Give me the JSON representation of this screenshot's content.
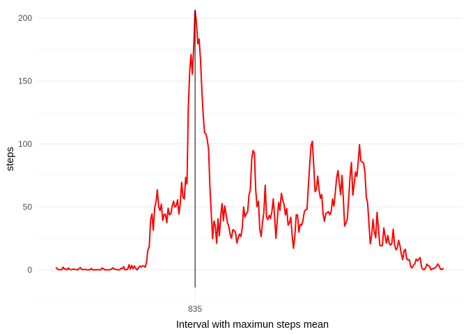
{
  "chart_data": {
    "type": "line",
    "title": "",
    "xlabel": "Interval with maximun steps mean",
    "ylabel": "steps",
    "x_ticks": [
      "835"
    ],
    "y_ticks": [
      0,
      50,
      100,
      150,
      200
    ],
    "ylim": [
      -25,
      210
    ],
    "grid": true,
    "colors": {
      "series": "#ff0000",
      "marker_line": "#000000"
    },
    "max_marker": {
      "x": 835,
      "y_from": -14,
      "y_to": 206
    },
    "series": [
      {
        "values": [
          [
            0,
            1.7
          ],
          [
            5,
            0.3
          ],
          [
            10,
            0.1
          ],
          [
            15,
            0.2
          ],
          [
            20,
            0.1
          ],
          [
            25,
            2.1
          ],
          [
            30,
            0.5
          ],
          [
            35,
            0.9
          ],
          [
            40,
            0.0
          ],
          [
            45,
            1.5
          ],
          [
            50,
            0.3
          ],
          [
            55,
            0.1
          ],
          [
            100,
            0.3
          ],
          [
            105,
            0.7
          ],
          [
            110,
            0.2
          ],
          [
            115,
            0.3
          ],
          [
            120,
            0.0
          ],
          [
            125,
            1.1
          ],
          [
            130,
            1.8
          ],
          [
            135,
            0.2
          ],
          [
            140,
            0.2
          ],
          [
            145,
            0.4
          ],
          [
            150,
            0.3
          ],
          [
            155,
            0.0
          ],
          [
            200,
            0.0
          ],
          [
            205,
            0.0
          ],
          [
            210,
            1.1
          ],
          [
            215,
            0.0
          ],
          [
            220,
            0.0
          ],
          [
            225,
            0.1
          ],
          [
            230,
            0.0
          ],
          [
            235,
            0.2
          ],
          [
            240,
            0.0
          ],
          [
            245,
            0.0
          ],
          [
            250,
            1.5
          ],
          [
            255,
            0.9
          ],
          [
            300,
            0.0
          ],
          [
            305,
            0.0
          ],
          [
            310,
            0.0
          ],
          [
            315,
            0.0
          ],
          [
            320,
            0.2
          ],
          [
            325,
            0.6
          ],
          [
            330,
            1.6
          ],
          [
            335,
            0.6
          ],
          [
            340,
            0.5
          ],
          [
            345,
            0.1
          ],
          [
            350,
            0.0
          ],
          [
            355,
            0.0
          ],
          [
            400,
            1.2
          ],
          [
            405,
            0.9
          ],
          [
            410,
            2.6
          ],
          [
            415,
            0.0
          ],
          [
            420,
            0.3
          ],
          [
            425,
            0.4
          ],
          [
            430,
            4.1
          ],
          [
            435,
            0.7
          ],
          [
            440,
            3.5
          ],
          [
            445,
            0.8
          ],
          [
            450,
            3.1
          ],
          [
            455,
            1.1
          ],
          [
            500,
            0.0
          ],
          [
            505,
            1.6
          ],
          [
            510,
            3.0
          ],
          [
            515,
            2.2
          ],
          [
            520,
            3.3
          ],
          [
            525,
            3.0
          ],
          [
            530,
            2.1
          ],
          [
            535,
            6.1
          ],
          [
            540,
            16.0
          ],
          [
            545,
            18.3
          ],
          [
            550,
            39.5
          ],
          [
            555,
            44.5
          ],
          [
            600,
            31.5
          ],
          [
            605,
            49.3
          ],
          [
            610,
            53.8
          ],
          [
            615,
            63.5
          ],
          [
            620,
            50.0
          ],
          [
            625,
            47.1
          ],
          [
            630,
            52.2
          ],
          [
            635,
            39.3
          ],
          [
            640,
            44.0
          ],
          [
            645,
            44.2
          ],
          [
            650,
            37.4
          ],
          [
            655,
            49.0
          ],
          [
            700,
            43.8
          ],
          [
            705,
            44.4
          ],
          [
            710,
            50.5
          ],
          [
            715,
            54.5
          ],
          [
            720,
            49.9
          ],
          [
            725,
            51.0
          ],
          [
            730,
            55.7
          ],
          [
            735,
            44.3
          ],
          [
            740,
            52.3
          ],
          [
            745,
            69.5
          ],
          [
            750,
            57.8
          ],
          [
            755,
            56.2
          ],
          [
            800,
            73.4
          ],
          [
            805,
            68.2
          ],
          [
            810,
            129.4
          ],
          [
            815,
            157.5
          ],
          [
            820,
            171.2
          ],
          [
            825,
            155.4
          ],
          [
            830,
            177.3
          ],
          [
            835,
            206.2
          ],
          [
            840,
            195.9
          ],
          [
            845,
            179.6
          ],
          [
            850,
            183.4
          ],
          [
            855,
            167.0
          ],
          [
            900,
            143.5
          ],
          [
            905,
            124.0
          ],
          [
            910,
            109.1
          ],
          [
            915,
            108.1
          ],
          [
            920,
            103.7
          ],
          [
            925,
            95.9
          ],
          [
            930,
            66.2
          ],
          [
            935,
            45.2
          ],
          [
            940,
            24.8
          ],
          [
            945,
            38.8
          ],
          [
            950,
            34.9
          ],
          [
            955,
            21.1
          ],
          [
            1000,
            40.6
          ],
          [
            1005,
            27.0
          ],
          [
            1010,
            42.4
          ],
          [
            1015,
            52.7
          ],
          [
            1020,
            38.9
          ],
          [
            1025,
            50.8
          ],
          [
            1030,
            44.3
          ],
          [
            1035,
            37.4
          ],
          [
            1040,
            34.7
          ],
          [
            1045,
            28.3
          ],
          [
            1050,
            25.1
          ],
          [
            1055,
            31.9
          ],
          [
            1100,
            31.4
          ],
          [
            1105,
            29.7
          ],
          [
            1110,
            21.3
          ],
          [
            1115,
            25.5
          ],
          [
            1120,
            28.4
          ],
          [
            1125,
            26.5
          ],
          [
            1130,
            33.4
          ],
          [
            1135,
            50.0
          ],
          [
            1140,
            42.0
          ],
          [
            1145,
            44.6
          ],
          [
            1150,
            46.0
          ],
          [
            1155,
            59.2
          ],
          [
            1200,
            63.9
          ],
          [
            1205,
            87.7
          ],
          [
            1210,
            94.8
          ],
          [
            1215,
            92.8
          ],
          [
            1220,
            63.4
          ],
          [
            1225,
            50.2
          ],
          [
            1230,
            54.5
          ],
          [
            1235,
            32.4
          ],
          [
            1240,
            26.5
          ],
          [
            1245,
            37.7
          ],
          [
            1250,
            45.1
          ],
          [
            1255,
            67.3
          ],
          [
            1300,
            42.3
          ],
          [
            1305,
            39.9
          ],
          [
            1310,
            43.3
          ],
          [
            1315,
            40.9
          ],
          [
            1320,
            46.2
          ],
          [
            1325,
            56.4
          ],
          [
            1330,
            42.8
          ],
          [
            1335,
            25.1
          ],
          [
            1340,
            39.9
          ],
          [
            1345,
            53.5
          ],
          [
            1350,
            47.3
          ],
          [
            1355,
            60.8
          ],
          [
            1400,
            55.8
          ],
          [
            1405,
            51.9
          ],
          [
            1410,
            43.6
          ],
          [
            1415,
            48.7
          ],
          [
            1420,
            35.5
          ],
          [
            1425,
            37.5
          ],
          [
            1430,
            41.8
          ],
          [
            1435,
            27.5
          ],
          [
            1440,
            17.1
          ],
          [
            1445,
            26.1
          ],
          [
            1450,
            43.6
          ],
          [
            1455,
            43.8
          ],
          [
            1500,
            30.0
          ],
          [
            1505,
            36.1
          ],
          [
            1510,
            35.5
          ],
          [
            1515,
            38.8
          ],
          [
            1520,
            45.9
          ],
          [
            1525,
            47.8
          ],
          [
            1530,
            48.0
          ],
          [
            1535,
            65.3
          ],
          [
            1540,
            82.9
          ],
          [
            1545,
            98.7
          ],
          [
            1550,
            102.1
          ],
          [
            1555,
            83.9
          ],
          [
            1600,
            62.1
          ],
          [
            1605,
            64.1
          ],
          [
            1610,
            74.5
          ],
          [
            1615,
            63.2
          ],
          [
            1620,
            56.9
          ],
          [
            1625,
            59.8
          ],
          [
            1630,
            43.9
          ],
          [
            1635,
            38.6
          ],
          [
            1640,
            44.7
          ],
          [
            1645,
            45.5
          ],
          [
            1650,
            46.2
          ],
          [
            1655,
            43.7
          ],
          [
            1700,
            46.6
          ],
          [
            1705,
            56.3
          ],
          [
            1710,
            50.7
          ],
          [
            1715,
            61.2
          ],
          [
            1720,
            72.7
          ],
          [
            1725,
            78.9
          ],
          [
            1730,
            68.9
          ],
          [
            1735,
            59.7
          ],
          [
            1740,
            75.1
          ],
          [
            1745,
            56.5
          ],
          [
            1750,
            34.8
          ],
          [
            1755,
            37.5
          ],
          [
            1800,
            40.7
          ],
          [
            1805,
            58.0
          ],
          [
            1810,
            74.7
          ],
          [
            1815,
            85.3
          ],
          [
            1820,
            59.3
          ],
          [
            1825,
            67.8
          ],
          [
            1830,
            77.7
          ],
          [
            1835,
            74.2
          ],
          [
            1840,
            85.3
          ],
          [
            1845,
            99.5
          ],
          [
            1850,
            86.6
          ],
          [
            1855,
            85.6
          ],
          [
            1900,
            84.9
          ],
          [
            1905,
            77.8
          ],
          [
            1910,
            58.0
          ],
          [
            1915,
            53.4
          ],
          [
            1920,
            36.3
          ],
          [
            1925,
            20.7
          ],
          [
            1930,
            27.4
          ],
          [
            1935,
            40.0
          ],
          [
            1940,
            30.2
          ],
          [
            1945,
            25.5
          ],
          [
            1950,
            45.7
          ],
          [
            1955,
            33.5
          ],
          [
            2000,
            19.6
          ],
          [
            2005,
            19.0
          ],
          [
            2010,
            19.3
          ],
          [
            2015,
            33.3
          ],
          [
            2020,
            26.8
          ],
          [
            2025,
            21.2
          ],
          [
            2030,
            27.3
          ],
          [
            2035,
            21.3
          ],
          [
            2040,
            19.5
          ],
          [
            2045,
            21.3
          ],
          [
            2050,
            32.3
          ],
          [
            2055,
            20.2
          ],
          [
            2100,
            15.9
          ],
          [
            2105,
            17.2
          ],
          [
            2110,
            23.5
          ],
          [
            2115,
            19.2
          ],
          [
            2120,
            12.5
          ],
          [
            2125,
            8.1
          ],
          [
            2130,
            14.7
          ],
          [
            2135,
            16.3
          ],
          [
            2140,
            8.7
          ],
          [
            2145,
            7.8
          ],
          [
            2150,
            8.1
          ],
          [
            2155,
            2.6
          ],
          [
            2200,
            1.5
          ],
          [
            2205,
            3.7
          ],
          [
            2210,
            4.8
          ],
          [
            2215,
            8.5
          ],
          [
            2220,
            7.1
          ],
          [
            2225,
            8.7
          ],
          [
            2230,
            9.8
          ],
          [
            2235,
            2.2
          ],
          [
            2240,
            0.3
          ],
          [
            2245,
            0.1
          ],
          [
            2250,
            1.6
          ],
          [
            2255,
            4.6
          ],
          [
            2300,
            3.3
          ],
          [
            2305,
            2.8
          ],
          [
            2310,
            0.0
          ],
          [
            2315,
            0.8
          ],
          [
            2320,
            1.0
          ],
          [
            2325,
            1.6
          ],
          [
            2330,
            2.6
          ],
          [
            2335,
            4.7
          ],
          [
            2340,
            3.3
          ],
          [
            2345,
            0.6
          ],
          [
            2350,
            0.2
          ],
          [
            2355,
            1.1
          ]
        ]
      }
    ]
  }
}
